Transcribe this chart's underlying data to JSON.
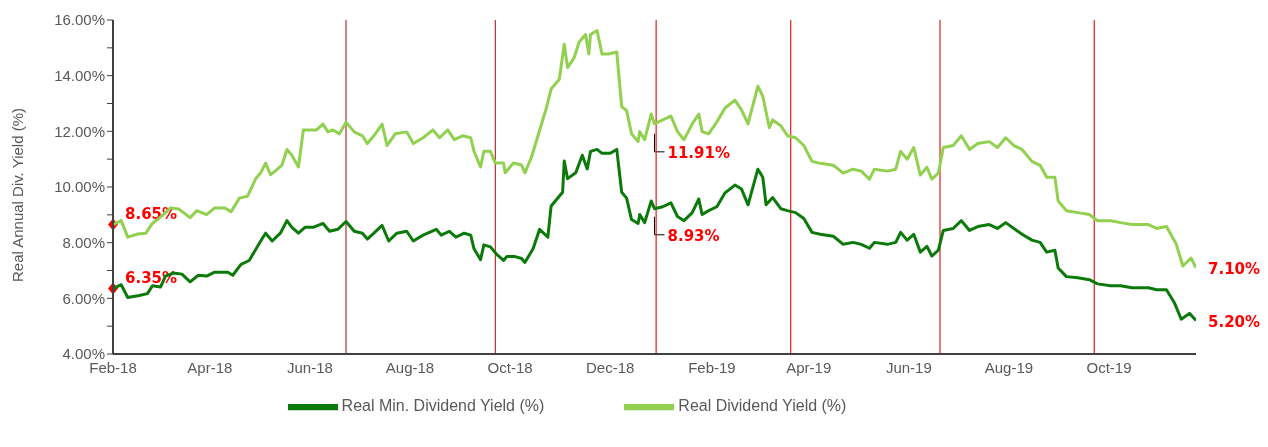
{
  "chart_data": {
    "type": "line",
    "ylabel": "Real Annual Div. Yield (%)",
    "xlim": [
      "2018-02-01",
      "2019-11-23"
    ],
    "xticks": [
      {
        "value": "2018-02-01",
        "label": "Feb-18"
      },
      {
        "value": "2018-04-01",
        "label": "Apr-18"
      },
      {
        "value": "2018-06-01",
        "label": "Jun-18"
      },
      {
        "value": "2018-08-01",
        "label": "Aug-18"
      },
      {
        "value": "2018-10-01",
        "label": "Oct-18"
      },
      {
        "value": "2018-12-01",
        "label": "Dec-18"
      },
      {
        "value": "2019-02-01",
        "label": "Feb-19"
      },
      {
        "value": "2019-04-01",
        "label": "Apr-19"
      },
      {
        "value": "2019-06-01",
        "label": "Jun-19"
      },
      {
        "value": "2019-08-01",
        "label": "Aug-19"
      },
      {
        "value": "2019-10-01",
        "label": "Oct-19"
      }
    ],
    "ylim": [
      4,
      16
    ],
    "yticks": [
      {
        "value": 4,
        "label": "4.00%"
      },
      {
        "value": 5,
        "label": null
      },
      {
        "value": 6,
        "label": "6.00%"
      },
      {
        "value": 7,
        "label": null
      },
      {
        "value": 8,
        "label": "8.00%"
      },
      {
        "value": 9,
        "label": null
      },
      {
        "value": 10,
        "label": "10.00%"
      },
      {
        "value": 11,
        "label": null
      },
      {
        "value": 12,
        "label": "12.00%"
      },
      {
        "value": 13,
        "label": null
      },
      {
        "value": 14,
        "label": "14.00%"
      },
      {
        "value": 15,
        "label": null
      },
      {
        "value": 16,
        "label": "16.00%"
      }
    ],
    "legend": "bottom",
    "marker": "none",
    "line_style": "solid",
    "series": [
      {
        "name": "Real Min. Dividend Yield (%)",
        "color": "#0b7a0b",
        "x": [
          "2018-02-01",
          "2018-02-06",
          "2018-02-10",
          "2018-02-17",
          "2018-02-22",
          "2018-02-25",
          "2018-03-02",
          "2018-03-05",
          "2018-03-10",
          "2018-03-15",
          "2018-03-20",
          "2018-03-25",
          "2018-03-30",
          "2018-04-04",
          "2018-04-12",
          "2018-04-15",
          "2018-04-20",
          "2018-04-25",
          "2018-05-02",
          "2018-05-05",
          "2018-05-09",
          "2018-05-14",
          "2018-05-18",
          "2018-05-21",
          "2018-05-25",
          "2018-05-29",
          "2018-06-03",
          "2018-06-09",
          "2018-06-13",
          "2018-06-18",
          "2018-06-23",
          "2018-06-28",
          "2018-07-03",
          "2018-07-06",
          "2018-07-10",
          "2018-07-15",
          "2018-07-19",
          "2018-07-24",
          "2018-07-30",
          "2018-08-03",
          "2018-08-09",
          "2018-08-17",
          "2018-08-20",
          "2018-08-25",
          "2018-08-29",
          "2018-09-03",
          "2018-09-07",
          "2018-09-09",
          "2018-09-13",
          "2018-09-15",
          "2018-09-19",
          "2018-09-23",
          "2018-09-27",
          "2018-09-29",
          "2018-10-04",
          "2018-10-08",
          "2018-10-10",
          "2018-10-15",
          "2018-10-19",
          "2018-10-24",
          "2018-10-26",
          "2018-11-02",
          "2018-11-03",
          "2018-11-05",
          "2018-11-10",
          "2018-11-14",
          "2018-11-17",
          "2018-11-19",
          "2018-11-23",
          "2018-11-26",
          "2018-12-01",
          "2018-12-05",
          "2018-12-08",
          "2018-12-11",
          "2018-12-14",
          "2018-12-18",
          "2018-12-19",
          "2018-12-22",
          "2018-12-26",
          "2018-12-28",
          "2019-01-02",
          "2019-01-07",
          "2019-01-11",
          "2019-01-15",
          "2019-01-20",
          "2019-01-24",
          "2019-01-26",
          "2019-01-30",
          "2019-02-04",
          "2019-02-09",
          "2019-02-15",
          "2019-02-19",
          "2019-02-23",
          "2019-03-01",
          "2019-03-04",
          "2019-03-06",
          "2019-03-10",
          "2019-03-15",
          "2019-03-19",
          "2019-03-24",
          "2019-03-29",
          "2019-04-03",
          "2019-04-08",
          "2019-04-16",
          "2019-04-22",
          "2019-04-28",
          "2019-05-03",
          "2019-05-08",
          "2019-05-11",
          "2019-05-19",
          "2019-05-24",
          "2019-05-27",
          "2019-05-31",
          "2019-06-04",
          "2019-06-08",
          "2019-06-12",
          "2019-06-15",
          "2019-06-19",
          "2019-06-22",
          "2019-06-28",
          "2019-07-03",
          "2019-07-08",
          "2019-07-13",
          "2019-07-20",
          "2019-07-25",
          "2019-07-30",
          "2019-08-04",
          "2019-08-09",
          "2019-08-15",
          "2019-08-20",
          "2019-08-24",
          "2019-08-29",
          "2019-08-31",
          "2019-09-05",
          "2019-09-12",
          "2019-09-19",
          "2019-09-24",
          "2019-10-02",
          "2019-10-08",
          "2019-10-15",
          "2019-10-25",
          "2019-10-30",
          "2019-11-05",
          "2019-11-10",
          "2019-11-14",
          "2019-11-19",
          "2019-11-23"
        ],
        "values": [
          6.35,
          6.49,
          6.03,
          6.1,
          6.17,
          6.45,
          6.41,
          6.8,
          6.91,
          6.87,
          6.59,
          6.83,
          6.8,
          6.94,
          6.94,
          6.83,
          7.22,
          7.36,
          8.06,
          8.34,
          8.06,
          8.34,
          8.79,
          8.55,
          8.34,
          8.55,
          8.55,
          8.69,
          8.41,
          8.48,
          8.76,
          8.41,
          8.34,
          8.13,
          8.34,
          8.62,
          8.06,
          8.34,
          8.41,
          8.06,
          8.27,
          8.48,
          8.27,
          8.41,
          8.2,
          8.34,
          8.27,
          7.78,
          7.39,
          7.92,
          7.85,
          7.57,
          7.36,
          7.5,
          7.5,
          7.43,
          7.29,
          7.78,
          8.48,
          8.2,
          9.32,
          9.81,
          10.93,
          10.3,
          10.51,
          11.14,
          10.65,
          11.28,
          11.35,
          11.21,
          11.21,
          11.35,
          9.81,
          9.6,
          8.83,
          8.69,
          9.01,
          8.72,
          9.5,
          9.22,
          9.29,
          9.43,
          8.94,
          8.79,
          9.08,
          9.57,
          9.01,
          9.15,
          9.29,
          9.79,
          10.07,
          9.93,
          9.36,
          10.64,
          10.35,
          9.36,
          9.62,
          9.22,
          9.15,
          9.08,
          8.87,
          8.37,
          8.3,
          8.23,
          7.94,
          8.01,
          7.94,
          7.8,
          8.01,
          7.94,
          8.01,
          8.37,
          8.09,
          8.3,
          7.66,
          7.87,
          7.52,
          7.73,
          8.44,
          8.51,
          8.79,
          8.44,
          8.58,
          8.65,
          8.51,
          8.72,
          8.51,
          8.3,
          8.09,
          8.01,
          7.66,
          7.73,
          7.09,
          6.78,
          6.74,
          6.67,
          6.52,
          6.45,
          6.45,
          6.38,
          6.38,
          6.31,
          6.31,
          5.82,
          5.25,
          5.46,
          5.2
        ]
      },
      {
        "name": "Real Dividend Yield (%)",
        "color": "#92d050",
        "x": [
          "2018-02-01",
          "2018-02-06",
          "2018-02-10",
          "2018-02-16",
          "2018-02-21",
          "2018-02-25",
          "2018-03-03",
          "2018-03-08",
          "2018-03-13",
          "2018-03-20",
          "2018-03-24",
          "2018-03-30",
          "2018-04-04",
          "2018-04-10",
          "2018-04-14",
          "2018-04-19",
          "2018-04-24",
          "2018-04-29",
          "2018-05-02",
          "2018-05-05",
          "2018-05-08",
          "2018-05-11",
          "2018-05-15",
          "2018-05-18",
          "2018-05-21",
          "2018-05-25",
          "2018-05-28",
          "2018-05-31",
          "2018-06-05",
          "2018-06-09",
          "2018-06-12",
          "2018-06-15",
          "2018-06-19",
          "2018-06-23",
          "2018-06-28",
          "2018-07-03",
          "2018-07-06",
          "2018-07-10",
          "2018-07-15",
          "2018-07-18",
          "2018-07-23",
          "2018-07-30",
          "2018-08-03",
          "2018-08-09",
          "2018-08-15",
          "2018-08-19",
          "2018-08-24",
          "2018-08-28",
          "2018-09-02",
          "2018-09-07",
          "2018-09-09",
          "2018-09-13",
          "2018-09-15",
          "2018-09-19",
          "2018-09-22",
          "2018-09-27",
          "2018-09-28",
          "2018-10-03",
          "2018-10-08",
          "2018-10-10",
          "2018-10-14",
          "2018-10-18",
          "2018-10-23",
          "2018-10-26",
          "2018-10-31",
          "2018-11-03",
          "2018-11-05",
          "2018-11-09",
          "2018-11-12",
          "2018-11-16",
          "2018-11-18",
          "2018-11-19",
          "2018-11-23",
          "2018-11-26",
          "2018-11-30",
          "2018-12-05",
          "2018-12-08",
          "2018-12-11",
          "2018-12-14",
          "2018-12-18",
          "2018-12-19",
          "2018-12-22",
          "2018-12-26",
          "2018-12-28",
          "2019-01-02",
          "2019-01-07",
          "2019-01-11",
          "2019-01-15",
          "2019-01-20",
          "2019-01-24",
          "2019-01-26",
          "2019-01-30",
          "2019-02-04",
          "2019-02-09",
          "2019-02-15",
          "2019-02-19",
          "2019-02-23",
          "2019-03-01",
          "2019-03-04",
          "2019-03-08",
          "2019-03-10",
          "2019-03-15",
          "2019-03-19",
          "2019-03-24",
          "2019-03-29",
          "2019-04-03",
          "2019-04-08",
          "2019-04-16",
          "2019-04-22",
          "2019-04-28",
          "2019-05-03",
          "2019-05-08",
          "2019-05-11",
          "2019-05-19",
          "2019-05-24",
          "2019-05-27",
          "2019-05-31",
          "2019-06-04",
          "2019-06-08",
          "2019-06-12",
          "2019-06-15",
          "2019-06-19",
          "2019-06-22",
          "2019-06-28",
          "2019-07-03",
          "2019-07-08",
          "2019-07-13",
          "2019-07-20",
          "2019-07-25",
          "2019-07-30",
          "2019-08-04",
          "2019-08-09",
          "2019-08-15",
          "2019-08-20",
          "2019-08-24",
          "2019-08-29",
          "2019-08-31",
          "2019-09-05",
          "2019-09-12",
          "2019-09-19",
          "2019-09-24",
          "2019-10-02",
          "2019-10-08",
          "2019-10-15",
          "2019-10-25",
          "2019-10-30",
          "2019-11-05",
          "2019-11-11",
          "2019-11-15",
          "2019-11-20",
          "2019-11-23"
        ],
        "values": [
          8.65,
          8.79,
          8.2,
          8.31,
          8.34,
          8.69,
          8.97,
          9.25,
          9.21,
          8.9,
          9.15,
          9.01,
          9.25,
          9.25,
          9.11,
          9.6,
          9.67,
          10.3,
          10.51,
          10.86,
          10.44,
          10.58,
          10.79,
          11.35,
          11.14,
          10.72,
          12.05,
          12.05,
          12.05,
          12.26,
          11.98,
          12.05,
          11.91,
          12.33,
          11.98,
          11.84,
          11.56,
          11.84,
          12.26,
          11.49,
          11.91,
          11.98,
          11.56,
          11.77,
          12.05,
          11.77,
          12.05,
          11.7,
          11.84,
          11.77,
          11.28,
          10.72,
          11.28,
          11.28,
          10.86,
          10.86,
          10.51,
          10.86,
          10.79,
          10.51,
          11.07,
          11.84,
          12.82,
          13.52,
          13.87,
          15.13,
          14.29,
          14.64,
          15.2,
          15.48,
          14.78,
          15.48,
          15.62,
          14.78,
          14.78,
          14.85,
          12.89,
          12.75,
          11.91,
          11.63,
          11.99,
          11.7,
          12.62,
          12.27,
          12.41,
          12.55,
          11.99,
          11.7,
          12.27,
          12.62,
          11.99,
          11.91,
          12.34,
          12.84,
          13.12,
          12.77,
          12.27,
          13.62,
          13.26,
          12.13,
          12.41,
          12.2,
          11.84,
          11.77,
          11.49,
          10.92,
          10.85,
          10.78,
          10.5,
          10.64,
          10.57,
          10.28,
          10.64,
          10.57,
          10.64,
          11.28,
          11.0,
          11.42,
          10.43,
          10.71,
          10.28,
          10.5,
          11.42,
          11.49,
          11.84,
          11.35,
          11.56,
          11.63,
          11.42,
          11.77,
          11.49,
          11.35,
          10.92,
          10.78,
          10.35,
          10.35,
          9.5,
          9.15,
          9.08,
          9.01,
          8.79,
          8.79,
          8.72,
          8.65,
          8.65,
          8.51,
          8.58,
          7.94,
          7.16,
          7.45,
          7.1
        ]
      }
    ],
    "ref_lines": [
      {
        "axis": "x",
        "value": "2018-06-23",
        "color": "#b03030"
      },
      {
        "axis": "x",
        "value": "2018-09-22",
        "color": "#b03030"
      },
      {
        "axis": "x",
        "value": "2018-12-29",
        "color": "#e01e1e"
      },
      {
        "axis": "x",
        "value": "2019-03-21",
        "color": "#e01e1e"
      },
      {
        "axis": "x",
        "value": "2019-06-20",
        "color": "#e01e1e"
      },
      {
        "axis": "x",
        "value": "2019-09-22",
        "color": "#e01e1e"
      }
    ],
    "annotations": [
      {
        "text": "8.65%",
        "x": "2018-02-01",
        "y": 8.65
      },
      {
        "text": "6.35%",
        "x": "2018-02-01",
        "y": 6.35
      },
      {
        "text": "11.91%",
        "x": "2018-12-28",
        "y": 11.91
      },
      {
        "text": "8.93%",
        "x": "2018-12-28",
        "y": 8.93
      },
      {
        "text": "7.10%",
        "x": "2019-11-23",
        "y": 7.1
      },
      {
        "text": "5.20%",
        "x": "2019-11-23",
        "y": 5.2
      }
    ]
  }
}
